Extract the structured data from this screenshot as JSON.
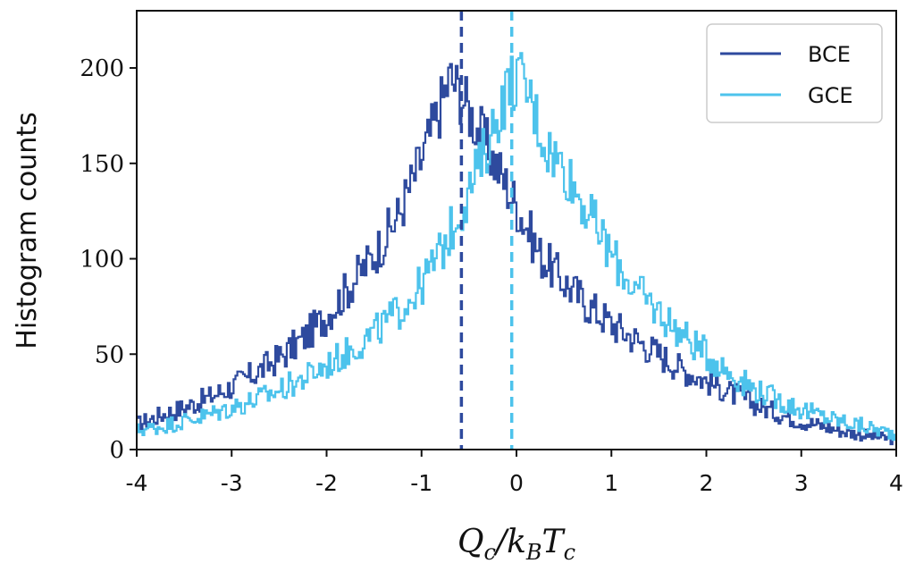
{
  "chart_data": {
    "type": "line",
    "title": "",
    "xlabel": "Q_c/k_B T_c",
    "ylabel": "Histogram counts",
    "xlim": [
      -4,
      4
    ],
    "ylim": [
      0,
      230
    ],
    "xticks": [
      -4,
      -3,
      -2,
      -1,
      0,
      1,
      2,
      3,
      4
    ],
    "xtick_labels": [
      "-4",
      "-3",
      "-2",
      "-1",
      "0",
      "1",
      "2",
      "3",
      "4"
    ],
    "yticks": [
      0,
      50,
      100,
      150,
      200
    ],
    "ytick_labels": [
      "0",
      "50",
      "100",
      "150",
      "200"
    ],
    "grid": false,
    "legend_position": "top-right",
    "series": [
      {
        "name": "BCE",
        "color": "#2e4a9e",
        "mean": -0.58,
        "x": [
          -4.0,
          -3.75,
          -3.5,
          -3.25,
          -3.0,
          -2.75,
          -2.5,
          -2.25,
          -2.0,
          -1.75,
          -1.5,
          -1.25,
          -1.0,
          -0.9,
          -0.8,
          -0.7,
          -0.6,
          -0.5,
          -0.4,
          -0.3,
          -0.2,
          -0.1,
          0.0,
          0.1,
          0.25,
          0.5,
          0.75,
          1.0,
          1.25,
          1.5,
          1.75,
          2.0,
          2.25,
          2.5,
          2.75,
          3.0,
          3.25,
          3.5,
          3.75,
          4.0
        ],
        "y": [
          13,
          18,
          22,
          27,
          33,
          40,
          48,
          58,
          70,
          86,
          102,
          122,
          152,
          166,
          180,
          195,
          188,
          178,
          168,
          158,
          148,
          138,
          128,
          118,
          102,
          88,
          76,
          66,
          58,
          50,
          42,
          36,
          30,
          24,
          19,
          15,
          12,
          9,
          7,
          5
        ]
      },
      {
        "name": "GCE",
        "color": "#4dc3ec",
        "mean": -0.05,
        "x": [
          -4.0,
          -3.75,
          -3.5,
          -3.25,
          -3.0,
          -2.75,
          -2.5,
          -2.25,
          -2.0,
          -1.75,
          -1.5,
          -1.25,
          -1.0,
          -0.75,
          -0.5,
          -0.4,
          -0.3,
          -0.2,
          -0.1,
          0.0,
          0.1,
          0.2,
          0.3,
          0.5,
          0.75,
          1.0,
          1.25,
          1.5,
          1.75,
          2.0,
          2.25,
          2.5,
          2.75,
          3.0,
          3.25,
          3.5,
          3.75,
          4.0
        ],
        "y": [
          10,
          12,
          15,
          18,
          22,
          26,
          31,
          37,
          44,
          52,
          61,
          72,
          86,
          108,
          135,
          148,
          160,
          175,
          188,
          196,
          190,
          176,
          160,
          148,
          125,
          102,
          84,
          72,
          60,
          50,
          40,
          32,
          26,
          21,
          17,
          14,
          11,
          8
        ]
      }
    ]
  },
  "legend": {
    "items": [
      {
        "label": "BCE",
        "color": "#2e4a9e"
      },
      {
        "label": "GCE",
        "color": "#4dc3ec"
      }
    ]
  }
}
